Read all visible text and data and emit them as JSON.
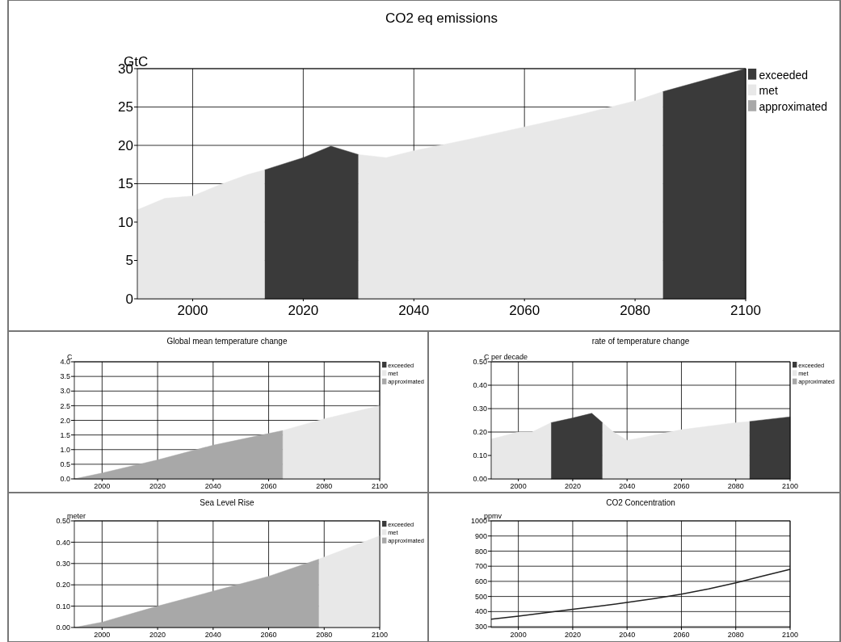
{
  "chart_data": [
    {
      "type": "area",
      "title": "CO2 eq emissions",
      "ylabel": "GtC",
      "xlim": [
        1990,
        2100
      ],
      "ylim": [
        0,
        30
      ],
      "xticks": [
        2000,
        2020,
        2040,
        2060,
        2080,
        2100
      ],
      "yticks": [
        0,
        5,
        10,
        15,
        20,
        25,
        30
      ],
      "grid": true,
      "legend": "top right",
      "series": [
        {
          "name": "exceeded",
          "color": "#3a3a3a",
          "x": [
            2013,
            2020,
            2025,
            2030,
            2050,
            2085,
            2090,
            2100
          ],
          "values": [
            16.8,
            18.4,
            19.9,
            18.8,
            null,
            27.0,
            28.0,
            30.0
          ]
        },
        {
          "name": "met",
          "color": "#e8e8e8",
          "x": [
            1990,
            1995,
            2000,
            2005,
            2010,
            2013,
            2020,
            2030,
            2035,
            2040,
            2050,
            2060,
            2070,
            2080,
            2085
          ],
          "values": [
            11.6,
            13.1,
            13.4,
            14.9,
            16.2,
            16.8,
            null,
            18.8,
            18.4,
            19.3,
            20.8,
            22.4,
            24.0,
            25.8,
            27.0
          ]
        },
        {
          "name": "approximated",
          "color": "#a8a8a8"
        }
      ]
    },
    {
      "type": "area",
      "title": "Global mean temperature change",
      "ylabel": "C",
      "xlim": [
        1990,
        2100
      ],
      "ylim": [
        0,
        4
      ],
      "xticks": [
        2000,
        2020,
        2040,
        2060,
        2080,
        2100
      ],
      "yticks": [
        {
          "value": 0,
          "label": "0.0"
        },
        {
          "value": 0.5,
          "label": "0.5"
        },
        {
          "value": 1,
          "label": "1.0"
        },
        {
          "value": 1.5,
          "label": "1.5"
        },
        {
          "value": 2,
          "label": "2.0"
        },
        {
          "value": 2.5,
          "label": "2.5"
        },
        {
          "value": 3,
          "label": "3.0"
        },
        {
          "value": 3.5,
          "label": "3.5"
        },
        {
          "value": 4,
          "label": "4.0"
        }
      ],
      "grid": true,
      "legend": "top right",
      "series": [
        {
          "name": "exceeded",
          "color": "#3a3a3a"
        },
        {
          "name": "met",
          "color": "#e8e8e8",
          "x": [
            2065,
            2080,
            2100
          ],
          "values": [
            1.65,
            2.05,
            2.5
          ]
        },
        {
          "name": "approximated",
          "color": "#a8a8a8",
          "x": [
            1990,
            2000,
            2020,
            2040,
            2060,
            2065
          ],
          "values": [
            0,
            0.2,
            0.65,
            1.15,
            1.55,
            1.65
          ]
        }
      ]
    },
    {
      "type": "area",
      "title": "rate of temperature change",
      "ylabel": "C per decade",
      "xlim": [
        1990,
        2100
      ],
      "ylim": [
        0,
        0.5
      ],
      "xticks": [
        2000,
        2020,
        2040,
        2060,
        2080,
        2100
      ],
      "yticks": [
        {
          "value": 0,
          "label": "0.00"
        },
        {
          "value": 0.1,
          "label": "0.10"
        },
        {
          "value": 0.2,
          "label": "0.20"
        },
        {
          "value": 0.3,
          "label": "0.30"
        },
        {
          "value": 0.4,
          "label": "0.40"
        },
        {
          "value": 0.5,
          "label": "0.50"
        }
      ],
      "grid": true,
      "legend": "top right",
      "series": [
        {
          "name": "exceeded",
          "color": "#3a3a3a",
          "x": [
            2012,
            2020,
            2027,
            2031,
            2050,
            2085,
            2100
          ],
          "values": [
            0.24,
            0.26,
            0.28,
            0.24,
            null,
            0.245,
            0.265
          ]
        },
        {
          "name": "met",
          "color": "#e8e8e8",
          "x": [
            1990,
            2000,
            2005,
            2012,
            2020,
            2031,
            2035,
            2040,
            2045,
            2060,
            2080,
            2085
          ],
          "values": [
            0.17,
            0.2,
            0.2,
            0.24,
            null,
            0.24,
            0.2,
            0.165,
            0.175,
            0.21,
            0.24,
            0.245
          ]
        },
        {
          "name": "approximated",
          "color": "#a8a8a8"
        }
      ]
    },
    {
      "type": "area",
      "title": "Sea Level Rise",
      "ylabel": "meter",
      "xlim": [
        1990,
        2100
      ],
      "ylim": [
        0,
        0.5
      ],
      "xticks": [
        2000,
        2020,
        2040,
        2060,
        2080,
        2100
      ],
      "yticks": [
        {
          "value": 0,
          "label": "0.00"
        },
        {
          "value": 0.1,
          "label": "0.10"
        },
        {
          "value": 0.2,
          "label": "0.20"
        },
        {
          "value": 0.3,
          "label": "0.30"
        },
        {
          "value": 0.4,
          "label": "0.40"
        },
        {
          "value": 0.5,
          "label": "0.50"
        }
      ],
      "grid": true,
      "legend": "top right",
      "series": [
        {
          "name": "exceeded",
          "color": "#3a3a3a"
        },
        {
          "name": "met",
          "color": "#e8e8e8",
          "x": [
            2078,
            2090,
            2100
          ],
          "values": [
            0.32,
            0.38,
            0.43
          ]
        },
        {
          "name": "approximated",
          "color": "#a8a8a8",
          "x": [
            1990,
            2000,
            2020,
            2040,
            2060,
            2078
          ],
          "values": [
            0,
            0.025,
            0.1,
            0.17,
            0.24,
            0.32
          ]
        }
      ]
    },
    {
      "type": "line",
      "title": "CO2 Concentration",
      "ylabel": "ppmv",
      "xlim": [
        1990,
        2100
      ],
      "ylim": [
        295,
        1000
      ],
      "xticks": [
        2000,
        2020,
        2040,
        2060,
        2080,
        2100
      ],
      "yticks": [
        300,
        400,
        500,
        600,
        700,
        800,
        900,
        1000
      ],
      "grid": true,
      "series": [
        {
          "color": "#222222",
          "x": [
            1990,
            2000,
            2010,
            2020,
            2030,
            2040,
            2050,
            2060,
            2070,
            2080,
            2090,
            2100
          ],
          "values": [
            350,
            370,
            392,
            415,
            437,
            460,
            486,
            515,
            550,
            590,
            635,
            680
          ]
        }
      ]
    }
  ]
}
